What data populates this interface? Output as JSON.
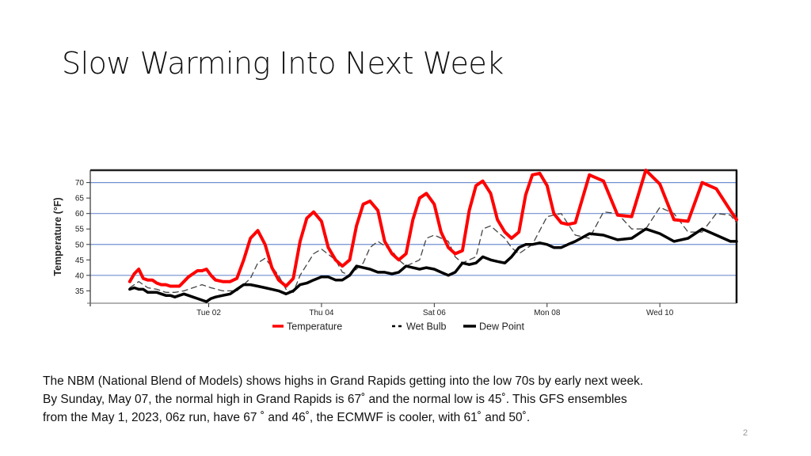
{
  "slide": {
    "title": "Slow Warming Into Next Week",
    "caption_lines": [
      "The NBM (National Blend of Models) shows highs in Grand Rapids getting into the low 70s by early next week.",
      "By Sunday, May 07, the normal high in Grand Rapids is 67˚ and the normal low is 45˚.   This GFS ensembles",
      "from the May 1, 2023,  06z run, have 67 ˚ and 46˚, the ECMWF is cooler, with 61˚ and 50˚."
    ],
    "page_number": "2"
  },
  "chart_data": {
    "type": "line",
    "title": "",
    "xlabel": "",
    "ylabel": "Temperature (°F)",
    "ylim": [
      31,
      74
    ],
    "xlim": [
      -2.1,
      9.36
    ],
    "yticks": [
      35,
      40,
      45,
      50,
      55,
      60,
      65,
      70
    ],
    "ygrid": [
      40,
      50,
      60,
      70
    ],
    "grid": true,
    "xticks": [
      {
        "x": 0,
        "label": "Tue 02"
      },
      {
        "x": 2,
        "label": "Thu 04"
      },
      {
        "x": 4,
        "label": "Sat 06"
      },
      {
        "x": 6,
        "label": "Mon 08"
      },
      {
        "x": 8,
        "label": "Wed 10"
      }
    ],
    "legend_position": "bottom",
    "colors": {
      "temperature": "#ff0000",
      "wetbulb": "#444444",
      "dewpoint": "#000000",
      "grid": "#7090d0"
    },
    "series": [
      {
        "name": "Temperature",
        "style": "solid",
        "x": [
          -1.4,
          -1.32,
          -1.24,
          -1.16,
          -1.08,
          -1.0,
          -0.92,
          -0.84,
          -0.76,
          -0.68,
          -0.6,
          -0.52,
          -0.44,
          -0.36,
          -0.28,
          -0.2,
          -0.12,
          -0.04,
          0.04,
          0.12,
          0.25,
          0.38,
          0.5,
          0.62,
          0.74,
          0.87,
          1.0,
          1.12,
          1.24,
          1.37,
          1.5,
          1.62,
          1.74,
          1.86,
          2.0,
          2.12,
          2.25,
          2.37,
          2.5,
          2.62,
          2.74,
          2.86,
          3.0,
          3.12,
          3.25,
          3.37,
          3.5,
          3.62,
          3.74,
          3.86,
          4.0,
          4.12,
          4.25,
          4.37,
          4.5,
          4.62,
          4.74,
          4.86,
          5.0,
          5.12,
          5.25,
          5.37,
          5.5,
          5.62,
          5.74,
          5.87,
          6.0,
          6.12,
          6.25,
          6.37,
          6.5,
          6.75,
          7.0,
          7.25,
          7.5,
          7.75,
          8.0,
          8.25,
          8.5,
          8.75,
          9.0,
          9.25,
          9.36
        ],
        "values": [
          38,
          40.5,
          42,
          39,
          38.5,
          38.5,
          37.5,
          37,
          37,
          36.5,
          36.5,
          36.5,
          38,
          39.5,
          40.5,
          41.5,
          41.5,
          42,
          40,
          38.5,
          38,
          38,
          39,
          45,
          52,
          54.5,
          50,
          42.5,
          38.5,
          36.5,
          39,
          51,
          58.5,
          60.5,
          57.5,
          49,
          45,
          43,
          45,
          56,
          63,
          64,
          61,
          51,
          47,
          45,
          47,
          58,
          65,
          66.5,
          63,
          54,
          49,
          47,
          48,
          61,
          69,
          70.5,
          66.5,
          58,
          54,
          52,
          54,
          66,
          72.5,
          73,
          69,
          60,
          57,
          56.5,
          57,
          72.5,
          70.5,
          59.5,
          59,
          74,
          69.5,
          58,
          57.5,
          70,
          68,
          61,
          58
        ]
      },
      {
        "name": "Wet Bulb",
        "style": "dashed",
        "x": [
          -1.4,
          -1.24,
          -1.08,
          -0.92,
          -0.76,
          -0.6,
          -0.44,
          -0.28,
          -0.12,
          0.04,
          0.25,
          0.5,
          0.74,
          0.87,
          1.0,
          1.24,
          1.37,
          1.5,
          1.62,
          1.86,
          2.0,
          2.25,
          2.37,
          2.5,
          2.74,
          2.86,
          3.0,
          3.25,
          3.37,
          3.5,
          3.74,
          3.86,
          4.0,
          4.25,
          4.37,
          4.5,
          4.74,
          4.86,
          5.0,
          5.25,
          5.37,
          5.5,
          5.74,
          6.0,
          6.25,
          6.5,
          6.75,
          7.0,
          7.25,
          7.5,
          7.75,
          8.0,
          8.25,
          8.5,
          8.75,
          9.0,
          9.25,
          9.36
        ],
        "values": [
          36,
          38,
          36,
          35.5,
          34.5,
          34.5,
          35,
          36,
          37,
          36,
          35,
          35,
          39,
          44,
          45.5,
          40,
          35.5,
          34.5,
          40,
          47,
          48.5,
          45,
          41,
          40,
          44,
          49,
          51,
          48,
          45,
          43,
          45,
          52,
          53,
          51,
          46,
          44,
          46,
          55,
          56,
          52,
          49,
          47,
          50,
          59,
          60,
          53,
          52,
          60.5,
          60,
          55,
          55,
          62,
          60,
          54,
          54,
          60,
          59.5,
          57
        ]
      },
      {
        "name": "Dew Point",
        "style": "solid",
        "x": [
          -1.4,
          -1.32,
          -1.24,
          -1.16,
          -1.08,
          -1.0,
          -0.92,
          -0.84,
          -0.76,
          -0.68,
          -0.6,
          -0.52,
          -0.44,
          -0.36,
          -0.28,
          -0.2,
          -0.12,
          -0.04,
          0.04,
          0.12,
          0.25,
          0.38,
          0.5,
          0.62,
          0.74,
          0.87,
          1.0,
          1.12,
          1.24,
          1.37,
          1.5,
          1.62,
          1.74,
          1.86,
          2.0,
          2.12,
          2.25,
          2.37,
          2.5,
          2.62,
          2.74,
          2.86,
          3.0,
          3.12,
          3.25,
          3.37,
          3.5,
          3.62,
          3.74,
          3.86,
          4.0,
          4.12,
          4.25,
          4.37,
          4.5,
          4.62,
          4.74,
          4.86,
          5.0,
          5.12,
          5.25,
          5.37,
          5.5,
          5.62,
          5.74,
          5.87,
          6.0,
          6.12,
          6.25,
          6.37,
          6.5,
          6.75,
          7.0,
          7.25,
          7.5,
          7.75,
          8.0,
          8.25,
          8.5,
          8.75,
          9.0,
          9.25,
          9.36
        ],
        "values": [
          35.5,
          36,
          35.5,
          35.5,
          34.5,
          34.5,
          34.5,
          34,
          33.5,
          33.5,
          33,
          33.5,
          34,
          33.5,
          33,
          32.5,
          32,
          31.5,
          32.5,
          33,
          33.5,
          34,
          35.5,
          37,
          37,
          36.5,
          36,
          35.5,
          35,
          34,
          35,
          37,
          37.5,
          38.5,
          39.5,
          39.5,
          38.5,
          38.5,
          40,
          43,
          42.5,
          42,
          41,
          41,
          40.5,
          41,
          43,
          42.5,
          42,
          42.5,
          42,
          41,
          40,
          41,
          44,
          43.5,
          44,
          46,
          45,
          44.5,
          44,
          46,
          49,
          50,
          50,
          50.5,
          50,
          49,
          49,
          50,
          51,
          53.5,
          53,
          51.5,
          52,
          55,
          53.5,
          51,
          52,
          55,
          53,
          51,
          51
        ]
      }
    ]
  }
}
